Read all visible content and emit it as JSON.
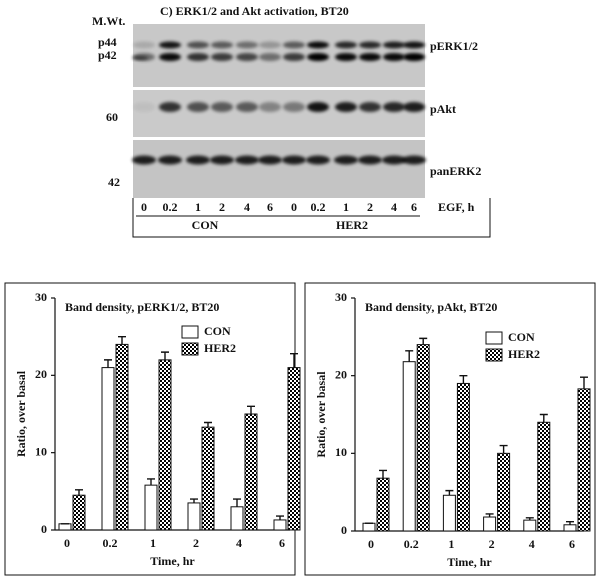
{
  "blot": {
    "title": "C) ERK1/2 and Akt activation, BT20",
    "mw_label": "M.Wt.",
    "markers": [
      "p44",
      "p42",
      "60",
      "42"
    ],
    "targets": [
      "pERK1/2",
      "pAkt",
      "panERK2"
    ],
    "lanes": [
      "0",
      "0.2",
      "1",
      "2",
      "4",
      "6",
      "0",
      "0.2",
      "1",
      "2",
      "4",
      "6"
    ],
    "treatment": "EGF, h",
    "groups": [
      "CON",
      "HER2"
    ]
  },
  "chart_data": [
    {
      "type": "bar",
      "title": "Band density, pERK1/2, BT20",
      "x_label": "Time, hr",
      "y_label": "Ratio, over basal",
      "categories": [
        "0",
        "0.2",
        "1",
        "2",
        "4",
        "6"
      ],
      "series": [
        {
          "name": "CON",
          "color": "#ffffff",
          "fill": "solid",
          "values": [
            0.8,
            21,
            5.8,
            3.5,
            3,
            1.3
          ],
          "errors": [
            0,
            1,
            0.8,
            0.5,
            1,
            0.5
          ]
        },
        {
          "name": "HER2",
          "color": "#000000",
          "fill": "checker",
          "values": [
            4.5,
            24,
            22,
            13.3,
            15,
            21
          ],
          "errors": [
            0.7,
            1,
            1,
            0.6,
            1,
            1.8
          ]
        }
      ],
      "ylim": [
        0,
        30
      ],
      "yticks": [
        0,
        10,
        20,
        30
      ]
    },
    {
      "type": "bar",
      "title": "Band density, pAkt, BT20",
      "x_label": "Time, hr",
      "y_label": "Ratio, over basal",
      "categories": [
        "0",
        "0.2",
        "1",
        "2",
        "4",
        "6"
      ],
      "series": [
        {
          "name": "CON",
          "color": "#ffffff",
          "fill": "solid",
          "values": [
            1,
            21.8,
            4.6,
            1.8,
            1.4,
            0.8
          ],
          "errors": [
            0,
            1.4,
            0.6,
            0.4,
            0.3,
            0.4
          ]
        },
        {
          "name": "HER2",
          "color": "#000000",
          "fill": "checker",
          "values": [
            6.8,
            24,
            19,
            10,
            14,
            18.3
          ],
          "errors": [
            1,
            0.8,
            1,
            1,
            1,
            1.5
          ]
        }
      ],
      "ylim": [
        0,
        30
      ],
      "yticks": [
        0,
        10,
        20,
        30
      ]
    }
  ]
}
